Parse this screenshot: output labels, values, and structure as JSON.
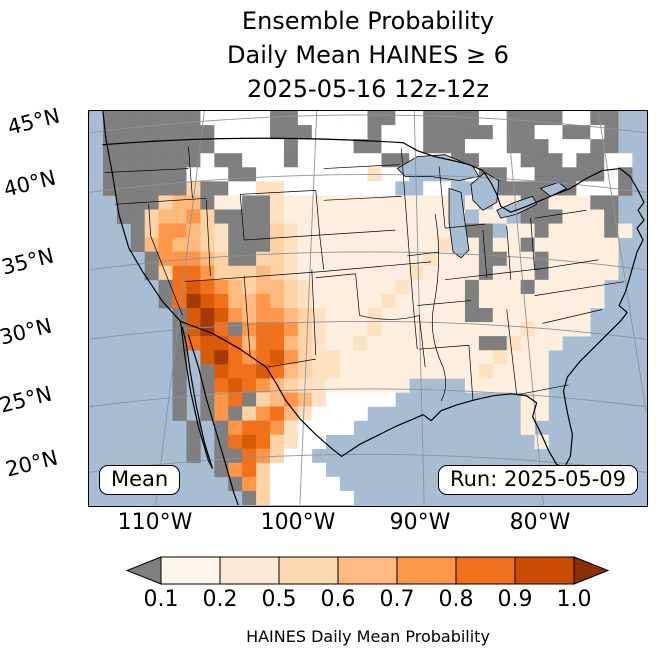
{
  "title": {
    "line1": "Ensemble Probability",
    "line2": "Daily Mean HAINES ≥ 6",
    "line3": "2025-05-16 12z-12z"
  },
  "map": {
    "mean_box": "Mean",
    "run_box": "Run: 2025-05-09",
    "lat_labels": [
      "45°N",
      "40°N",
      "35°N",
      "30°N",
      "25°N",
      "20°N"
    ],
    "lon_labels": [
      "110°W",
      "100°W",
      "90°W",
      "80°W"
    ],
    "ocean_color": "#a7bdd3",
    "masked_color": "#7f7f7f",
    "grid": {
      "colors": {
        "~": "",
        "L": "#a7bdd3",
        "g": "#7f7f7f",
        "w": "#ffffff",
        ".": "#fdeedd",
        "1": "#fee1c0",
        "2": "#fdd2a5",
        "5": "#fdb97e",
        "6": "#fd9649",
        "7": "#f1701a",
        "8": "#d85c07",
        "9": "#a33a02"
      },
      "rows": [
        "~gggggggwwwwwggwwwwwggwwggggwwggggwwgg~~",
        "~ggggggggwwwwgggwwwwgwwwgggggwggwwggwg~~",
        "~ggggggggwwwwwgwwwwggwwwgggwwwgggwwwgg~~",
        "~gggggggwggwwwgwwwwwwggwwwggwwwgggwggww~",
        "~ggggggwwwggwwwwwwww1wwLLLLwggwwgggggwg~",
        "~gggggg2ggww11wwwwwwwwLLwwLLwggggggwwwg~",
        "~~ggg255g..gg1............L.L..gg...gg~~",
        "~~gg25562gggg1.............L..Lggg...g~~",
        "~~~g266521ggg21............ggL..g....g.~",
        "~~~g565521ggg21..........1..g..g......~~",
        "~~~~g66652gg221.........1...gg..g.....~~",
        "~~~~g2776222521........1....g...g.....~~",
        "~~~~~g7876525521......1....g...g.....~~~",
        "~~~~~g7987556521.....1.....g.........~~~",
        "~~~~~~g8986566521...1......gg.......~~~~",
        "~~~~~~g897g677621...1..........1....~~~~",
        "~~~~~~g7887577521..1........gg1...~~~~~~",
        "~~~~~~g~8976786211...........1...~~~~~~~",
        "~~~~~~g~g877875211..........1....~~~~~~~",
        "~~~~~~g~g78765211......~~~~......~~~~~~~",
        "~~~~~~g~g67g25651wwwww~~~~~~~~~..~~~~~~~",
        "~~~~~~g~g6g26751wwww~~~~~~~~~~~..~~~~~~~",
        "~~~~~~~g~g67761wwww~~~~~~~~~~~~.~~~~~~~~",
        "~~~~~~~g~g78721ww~~~~~~~~~~~~~~~.~~~~~~~",
        "~~~~~~~g~gg762ww~~~~~~~~~~~~~~~~~~~~~~~~",
        "~~~~~~~~~g672wwww~~~~~~~~~~~~~~~~~~~~~~~",
        "~~~~~~~~~~g62wwwww~~~~~~~~~~~~~~~~~~~~~~",
        "~~~~~~~~~~~g2wwwwww~~~~~~~~~~~~~~~~~~~~~"
      ]
    }
  },
  "colorbar": {
    "ticks": [
      "0.1",
      "0.2",
      "0.5",
      "0.6",
      "0.7",
      "0.8",
      "0.9",
      "1.0"
    ],
    "segment_colors": [
      "#fff5eb",
      "#fee8d3",
      "#fdd7b0",
      "#fdb97e",
      "#fd9649",
      "#f1701a",
      "#cc4c02"
    ],
    "under_arrow_color": "#7f7f7f",
    "over_arrow_color": "#8c2d04",
    "label": "HAINES Daily Mean Probability"
  },
  "chart_data": {
    "type": "heatmap",
    "title": "Ensemble Probability Daily Mean HAINES ≥ 6",
    "valid_period": "2025-05-16 12z-12z",
    "model_run": "2025-05-09",
    "statistic": "Mean",
    "colorbar_label": "HAINES Daily Mean Probability",
    "colorbar_ticks": [
      0.1,
      0.2,
      0.5,
      0.6,
      0.7,
      0.8,
      0.9,
      1.0
    ],
    "lat_ticks": [
      "45°N",
      "40°N",
      "35°N",
      "30°N",
      "25°N",
      "20°N"
    ],
    "lon_ticks": [
      "110°W",
      "100°W",
      "90°W",
      "80°W"
    ],
    "projection": "Lambert conformal over CONUS and northern Mexico",
    "high_probability_regions": [
      {
        "region": "Arizona / New Mexico into Sonora-Chihuahua (Mexico)",
        "probability": "0.8–1.0"
      },
      {
        "region": "Nevada / Utah Great Basin",
        "probability": "0.5–0.8"
      },
      {
        "region": "Southern New Mexico / West Texas into Tamaulipas (Mexico)",
        "probability": "0.5–0.9"
      },
      {
        "region": "Central and southern Plains",
        "probability": "0.1–0.5"
      },
      {
        "region": "Pacific Northwest, northern Rockies, Northeast, western Mexico",
        "probability": "no data (masked gray)"
      }
    ]
  }
}
